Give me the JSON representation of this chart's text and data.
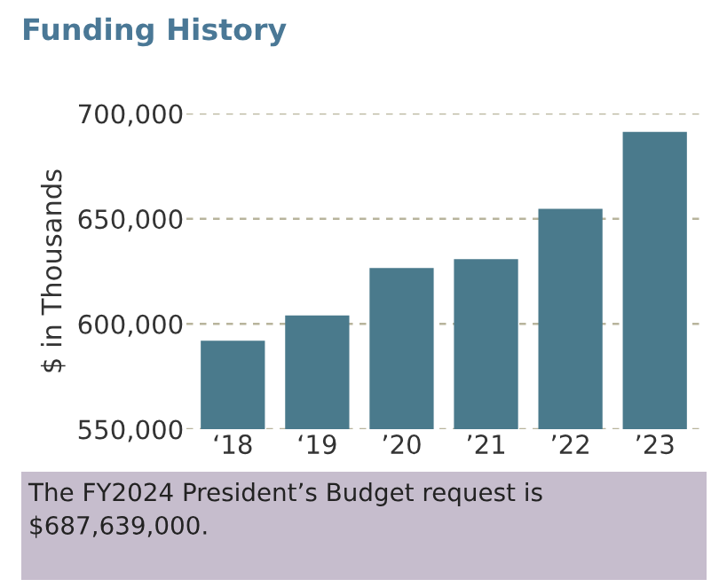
{
  "chart_data": {
    "type": "bar",
    "title": "Funding History",
    "ylabel": "$ in Thousands",
    "categories": [
      "‘18",
      "‘19",
      "’20",
      "’21",
      "’22",
      "’23"
    ],
    "values": [
      592000,
      604000,
      626600,
      630800,
      654700,
      691300
    ],
    "color": "#4a7a8c",
    "ylim": [
      550000,
      700000
    ],
    "yticks": [
      {
        "value": 550000,
        "label": "550,000"
      },
      {
        "value": 600000,
        "label": "600,000"
      },
      {
        "value": 650000,
        "label": "650,000"
      },
      {
        "value": 700000,
        "label": "700,000"
      }
    ],
    "grid": "y",
    "annotations": [
      "The FY2024 President’s Budget request is $687,639,000."
    ]
  }
}
